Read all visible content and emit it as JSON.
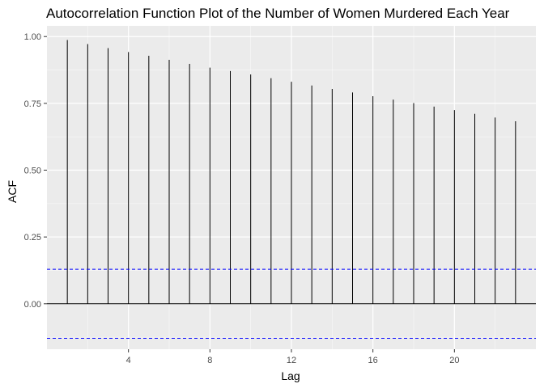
{
  "chart_data": {
    "type": "bar",
    "title": "Autocorrelation Function Plot of the Number of Women Murdered Each Year",
    "xlabel": "Lag",
    "ylabel": "ACF",
    "x": [
      1,
      2,
      3,
      4,
      5,
      6,
      7,
      8,
      9,
      10,
      11,
      12,
      13,
      14,
      15,
      16,
      17,
      18,
      19,
      20,
      21,
      22,
      23
    ],
    "values": [
      0.987,
      0.972,
      0.957,
      0.942,
      0.928,
      0.913,
      0.898,
      0.884,
      0.871,
      0.858,
      0.844,
      0.831,
      0.817,
      0.804,
      0.791,
      0.777,
      0.764,
      0.751,
      0.738,
      0.725,
      0.711,
      0.697,
      0.683
    ],
    "xlim": [
      0,
      24
    ],
    "ylim": [
      -0.17,
      1.04
    ],
    "x_ticks": [
      4,
      8,
      12,
      16,
      20
    ],
    "x_tick_labels": [
      "4",
      "8",
      "12",
      "16",
      "20"
    ],
    "y_ticks": [
      0,
      0.25,
      0.5,
      0.75,
      1
    ],
    "y_tick_labels": [
      "0.00",
      "0.25",
      "0.50",
      "0.75",
      "1.00"
    ],
    "confidence_bounds": [
      0.129,
      -0.129
    ],
    "grid": true,
    "colors": {
      "panel_background": "#ebebeb",
      "grid_major": "#ffffff",
      "bars": "#000000",
      "confidence_line": "#0000ff"
    }
  }
}
